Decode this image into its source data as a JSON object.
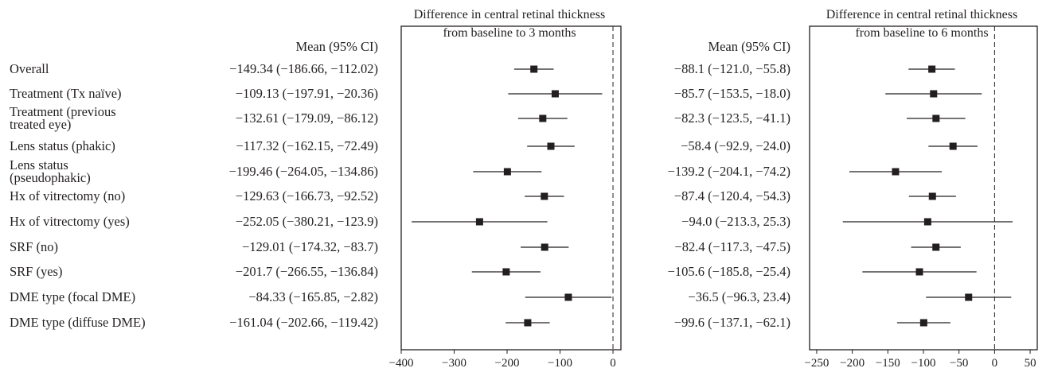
{
  "subgroups": [
    {
      "lines": [
        "Overall"
      ]
    },
    {
      "lines": [
        "Treatment (Tx naïve)"
      ]
    },
    {
      "lines": [
        "Treatment (previous",
        "treated eye)"
      ]
    },
    {
      "lines": [
        "Lens status (phakic)"
      ]
    },
    {
      "lines": [
        "Lens status",
        "(pseudophakic)"
      ]
    },
    {
      "lines": [
        "Hx of vitrectomy (no)"
      ]
    },
    {
      "lines": [
        "Hx of vitrectomy (yes)"
      ]
    },
    {
      "lines": [
        "SRF (no)"
      ]
    },
    {
      "lines": [
        "SRF (yes)"
      ]
    },
    {
      "lines": [
        "DME type (focal DME)"
      ]
    },
    {
      "lines": [
        "DME type (diffuse DME)"
      ]
    }
  ],
  "chart_data": [
    {
      "type": "forest",
      "title": [
        "Difference in central retinal thickness",
        "from baseline to 3 months"
      ],
      "ci_column_header": "Mean (95% CI)",
      "xlim": [
        -400,
        15
      ],
      "xticks": [
        "-400",
        "-300",
        "-200",
        "-100",
        "0"
      ],
      "reference_line": 0,
      "ci_text": [
        "−149.34 (−186.66, −112.02)",
        "−109.13 (−197.91, −20.36)",
        "−132.61 (−179.09, −86.12)",
        "−117.32 (−162.15, −72.49)",
        "−199.46 (−264.05, −134.86)",
        "−129.63 (−166.73, −92.52)",
        "−252.05 (−380.21, −123.9)",
        "−129.01 (−174.32, −83.7)",
        "−201.7 (−266.55, −136.84)",
        "−84.33 (−165.85, −2.82)",
        "−161.04 (−202.66, −119.42)"
      ],
      "mean": [
        -149.34,
        -109.13,
        -132.61,
        -117.32,
        -199.46,
        -129.63,
        -252.05,
        -129.01,
        -201.7,
        -84.33,
        -161.04
      ],
      "lower": [
        -186.66,
        -197.91,
        -179.09,
        -162.15,
        -264.05,
        -166.73,
        -380.21,
        -174.32,
        -266.55,
        -165.85,
        -202.66
      ],
      "upper": [
        -112.02,
        -20.36,
        -86.12,
        -72.49,
        -134.86,
        -92.52,
        -123.9,
        -83.7,
        -136.84,
        -2.82,
        -119.42
      ]
    },
    {
      "type": "forest",
      "title": [
        "Difference in central retinal thickness",
        "from baseline to 6 months"
      ],
      "ci_column_header": "Mean (95% CI)",
      "xlim": [
        -260,
        60
      ],
      "xticks": [
        "-250",
        "-200",
        "-150",
        "-100",
        "-50",
        "0",
        "50"
      ],
      "reference_line": 0,
      "ci_text": [
        "−88.1 (−121.0, −55.8)",
        "−85.7 (−153.5, −18.0)",
        "−82.3 (−123.5, −41.1)",
        "−58.4 (−92.9, −24.0)",
        "−139.2 (−204.1, −74.2)",
        "−87.4 (−120.4, −54.3)",
        "−94.0 (−213.3, 25.3)",
        "−82.4 (−117.3, −47.5)",
        "−105.6 (−185.8, −25.4)",
        "−36.5 (−96.3, 23.4)",
        "−99.6 (−137.1, −62.1)"
      ],
      "mean": [
        -88.1,
        -85.7,
        -82.3,
        -58.4,
        -139.2,
        -87.4,
        -94.0,
        -82.4,
        -105.6,
        -36.5,
        -99.6
      ],
      "lower": [
        -121.0,
        -153.5,
        -123.5,
        -92.9,
        -204.1,
        -120.4,
        -213.3,
        -117.3,
        -185.8,
        -96.3,
        -137.1
      ],
      "upper": [
        -55.8,
        -18.0,
        -41.1,
        -24.0,
        -74.2,
        -54.3,
        25.3,
        -47.5,
        -25.4,
        23.4,
        -62.1
      ]
    }
  ]
}
